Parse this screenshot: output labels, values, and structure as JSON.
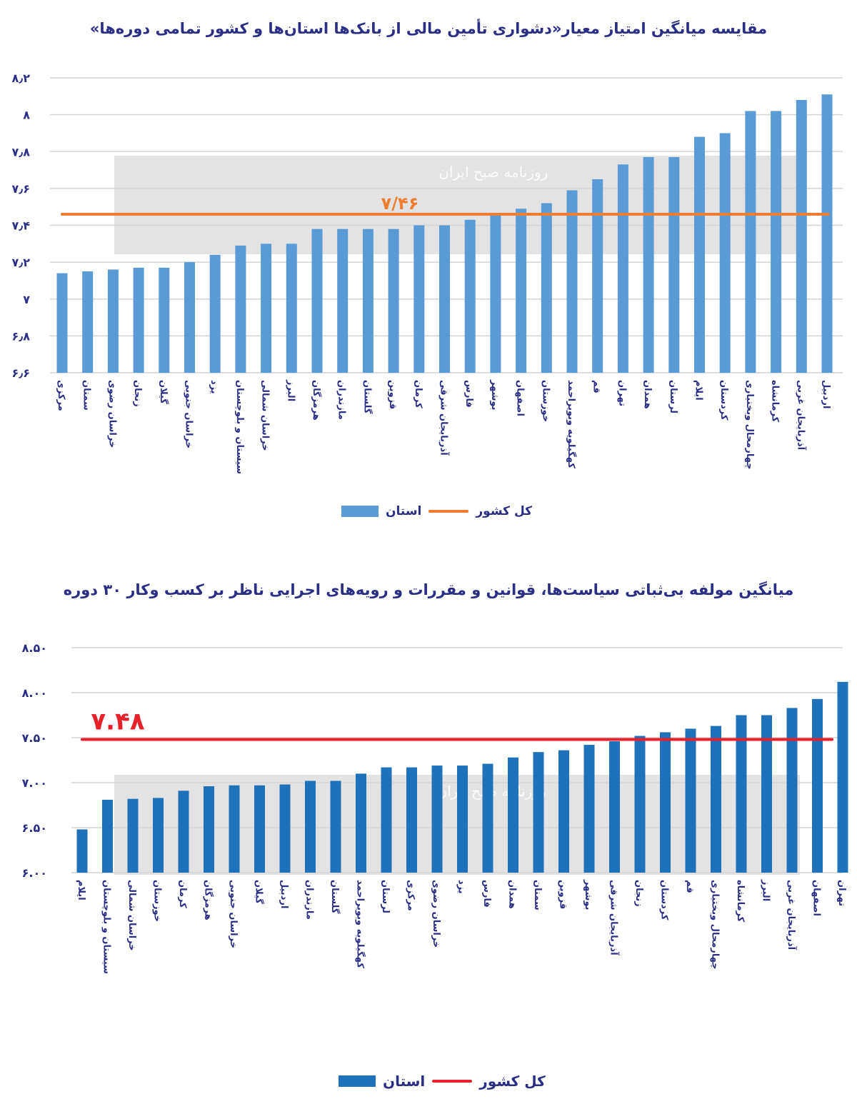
{
  "watermark": "روزنامه صبح ایران",
  "chart_data": [
    {
      "type": "bar",
      "title": "مقایسه میانگین امتیاز معیار«دشواری تأمین مالی از بانک‌ها استان‌ها و کشور تمامی دوره‌ها»",
      "categories": [
        "مرکزی",
        "سمنان",
        "خراسان رضوی",
        "زنجان",
        "گیلان",
        "خراسان جنوبی",
        "یزد",
        "سیستان و بلوچستان",
        "خراسان شمالی",
        "البرز",
        "هرمزگان",
        "مازندران",
        "گلستان",
        "قزوین",
        "کرمان",
        "آذربایجان شرقی",
        "فارس",
        "بوشهر",
        "اصفهان",
        "خوزستان",
        "کهگیلویه وبویراحمد",
        "قم",
        "تهران",
        "همدان",
        "لرستان",
        "ایلام",
        "کردستان",
        "چهارمحال وبختیاری",
        "کرمانشاه",
        "آذربایجان غربی",
        "اردبیل"
      ],
      "values": [
        7.14,
        7.15,
        7.16,
        7.17,
        7.17,
        7.2,
        7.24,
        7.29,
        7.3,
        7.3,
        7.38,
        7.38,
        7.38,
        7.38,
        7.4,
        7.4,
        7.43,
        7.46,
        7.49,
        7.52,
        7.59,
        7.65,
        7.73,
        7.77,
        7.77,
        7.88,
        7.9,
        8.02,
        8.02,
        8.08,
        8.11
      ],
      "ylim": [
        6.6,
        8.2
      ],
      "yticks": [
        "۶٫۶",
        "۶٫۸",
        "۷",
        "۷٫۲",
        "۷٫۴",
        "۷٫۶",
        "۷٫۸",
        "۸",
        "۸٫۲"
      ],
      "ytick_values": [
        6.6,
        6.8,
        7.0,
        7.2,
        7.4,
        7.6,
        7.8,
        8.0,
        8.2
      ],
      "reference_line": {
        "value": 7.46,
        "label": "۷/۴۶",
        "color": "#ed7d31"
      },
      "bar_color": "#5b9bd5",
      "grid": true,
      "legend": {
        "position": "bottom",
        "bar_label": "استان",
        "line_label": "کل کشور"
      }
    },
    {
      "type": "bar",
      "title": "میانگین مولفه بی‌ثباتی سیاست‌ها، قوانین و مقررات و رویه‌های اجرایی ناظر بر کسب وکار ۳۰ دوره",
      "categories": [
        "ایلام",
        "سیستان و بلوچستان",
        "خراسان شمالی",
        "خوزستان",
        "کرمان",
        "هرمزگان",
        "خراسان جنوبی",
        "گیلان",
        "اردبیل",
        "مازندران",
        "گلستان",
        "کهگیلویه وبویراحمد",
        "لرستان",
        "مرکزی",
        "خراسان رضوی",
        "یزد",
        "فارس",
        "همدان",
        "سمنان",
        "قزوین",
        "بوشهر",
        "آذربایجان شرقی",
        "زنجان",
        "کردستان",
        "قم",
        "چهارمحال وبختیاری",
        "کرمانشاه",
        "البرز",
        "آذربایجان غربی",
        "اصفهان",
        "تهران"
      ],
      "values": [
        6.48,
        6.81,
        6.82,
        6.83,
        6.91,
        6.96,
        6.97,
        6.97,
        6.98,
        7.02,
        7.02,
        7.1,
        7.17,
        7.17,
        7.19,
        7.19,
        7.21,
        7.28,
        7.34,
        7.36,
        7.42,
        7.46,
        7.52,
        7.56,
        7.6,
        7.63,
        7.75,
        7.75,
        7.83,
        7.93,
        8.12
      ],
      "ylim": [
        6.0,
        8.5
      ],
      "yticks": [
        "۶.۰۰",
        "۶.۵۰",
        "۷.۰۰",
        "۷.۵۰",
        "۸.۰۰",
        "۸.۵۰"
      ],
      "ytick_values": [
        6.0,
        6.5,
        7.0,
        7.5,
        8.0,
        8.5
      ],
      "reference_line": {
        "value": 7.48,
        "label": "۷.۴۸",
        "color": "#e8202a"
      },
      "bar_color": "#1f72ba",
      "grid": true,
      "legend": {
        "position": "bottom",
        "bar_label": "استان",
        "line_label": "کل کشور"
      }
    }
  ]
}
